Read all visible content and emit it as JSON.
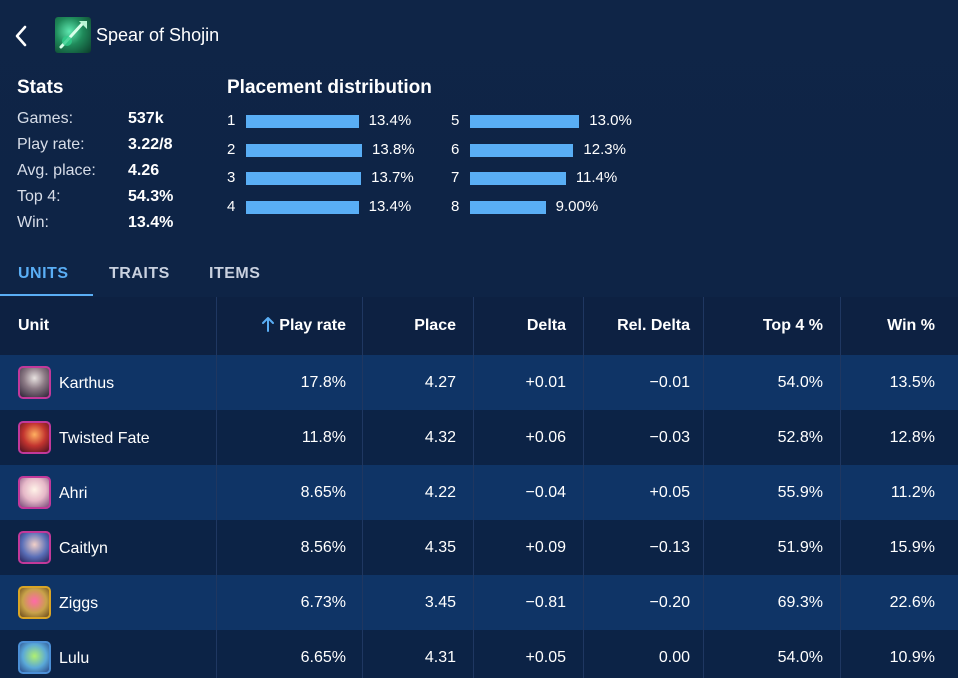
{
  "header": {
    "title": "Spear of Shojin"
  },
  "stats": {
    "heading": "Stats",
    "items": [
      {
        "label": "Games:",
        "value": "537k"
      },
      {
        "label": "Play rate:",
        "value": "3.22/8"
      },
      {
        "label": "Avg. place:",
        "value": "4.26"
      },
      {
        "label": "Top 4:",
        "value": "54.3%"
      },
      {
        "label": "Win:",
        "value": "13.4%"
      }
    ]
  },
  "distribution": {
    "heading": "Placement distribution",
    "items": [
      {
        "place": "1",
        "pct": "13.4%",
        "value": 13.4
      },
      {
        "place": "2",
        "pct": "13.8%",
        "value": 13.8
      },
      {
        "place": "3",
        "pct": "13.7%",
        "value": 13.7
      },
      {
        "place": "4",
        "pct": "13.4%",
        "value": 13.4
      },
      {
        "place": "5",
        "pct": "13.0%",
        "value": 13.0
      },
      {
        "place": "6",
        "pct": "12.3%",
        "value": 12.3
      },
      {
        "place": "7",
        "pct": "11.4%",
        "value": 11.4
      },
      {
        "place": "8",
        "pct": "9.00%",
        "value": 9.0
      }
    ],
    "bar_color": "#59aef5"
  },
  "tabs": [
    {
      "label": "UNITS",
      "active": true
    },
    {
      "label": "TRAITS",
      "active": false
    },
    {
      "label": "ITEMS",
      "active": false
    }
  ],
  "table": {
    "columns": {
      "unit": "Unit",
      "play_rate": "Play rate",
      "place": "Place",
      "delta": "Delta",
      "rel_delta": "Rel. Delta",
      "top4": "Top 4 %",
      "win": "Win %"
    },
    "sort_icon": "arrow-up-icon",
    "rows": [
      {
        "unit": "Karthus",
        "play_rate": "17.8%",
        "place": "4.27",
        "delta": "+0.01",
        "rel_delta": "−0.01",
        "top4": "54.0%",
        "win": "13.5%"
      },
      {
        "unit": "Twisted Fate",
        "play_rate": "11.8%",
        "place": "4.32",
        "delta": "+0.06",
        "rel_delta": "−0.03",
        "top4": "52.8%",
        "win": "12.8%"
      },
      {
        "unit": "Ahri",
        "play_rate": "8.65%",
        "place": "4.22",
        "delta": "−0.04",
        "rel_delta": "+0.05",
        "top4": "55.9%",
        "win": "11.2%"
      },
      {
        "unit": "Caitlyn",
        "play_rate": "8.56%",
        "place": "4.35",
        "delta": "+0.09",
        "rel_delta": "−0.13",
        "top4": "51.9%",
        "win": "15.9%"
      },
      {
        "unit": "Ziggs",
        "play_rate": "6.73%",
        "place": "3.45",
        "delta": "−0.81",
        "rel_delta": "−0.20",
        "top4": "69.3%",
        "win": "22.6%"
      },
      {
        "unit": "Lulu",
        "play_rate": "6.65%",
        "place": "4.31",
        "delta": "+0.05",
        "rel_delta": "0.00",
        "top4": "54.0%",
        "win": "10.9%"
      }
    ]
  },
  "colors": {
    "accent": "#5aaef5",
    "background": "#0f2547"
  }
}
